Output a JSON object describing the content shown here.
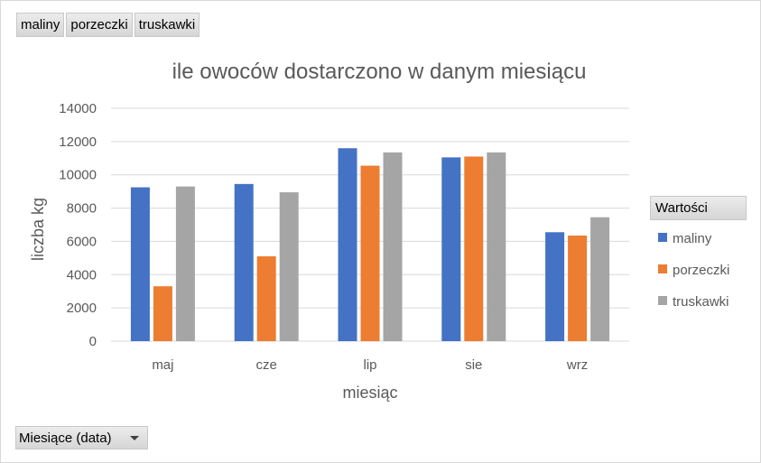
{
  "field_buttons": [
    "maliny",
    "porzeczki",
    "truskawki"
  ],
  "legend_header": "Wartości",
  "axis_field_label": "Miesiące (data)",
  "colors": {
    "maliny": "#4472c4",
    "porzeczki": "#ed7d31",
    "truskawki": "#a5a5a5",
    "grid": "#d9d9d9",
    "axis_text": "#595959"
  },
  "chart_data": {
    "type": "bar",
    "title": "ile owoców dostarczono w danym miesiącu",
    "xlabel": "miesiąc",
    "ylabel": "liczba kg",
    "ylim": [
      0,
      14000
    ],
    "yticks": [
      0,
      2000,
      4000,
      6000,
      8000,
      10000,
      12000,
      14000
    ],
    "grid": true,
    "legend_position": "right",
    "categories": [
      "maj",
      "cze",
      "lip",
      "sie",
      "wrz"
    ],
    "series": [
      {
        "name": "maliny",
        "values": [
          9250,
          9450,
          11600,
          11050,
          6550
        ]
      },
      {
        "name": "porzeczki",
        "values": [
          3300,
          5100,
          10550,
          11100,
          6350
        ]
      },
      {
        "name": "truskawki",
        "values": [
          9300,
          8950,
          11350,
          11350,
          7450
        ]
      }
    ]
  }
}
